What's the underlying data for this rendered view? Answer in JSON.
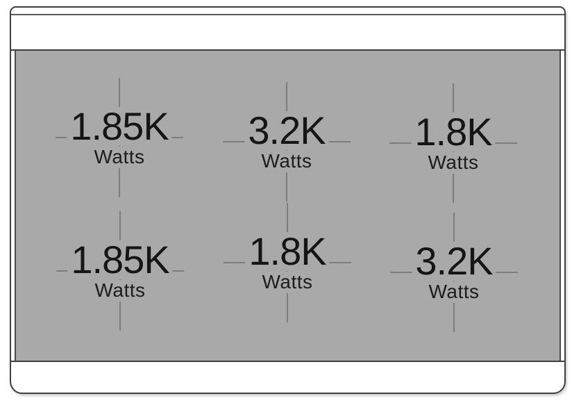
{
  "diagram": {
    "name": "range-cooktop-burner-wattage-diagram",
    "unit_label": "Watts"
  },
  "colors": {
    "surface_gray": "#a9a9a9",
    "crosshair_gray": "#7d7d7d",
    "frame_border": "#3e3e3e",
    "text": "#151515",
    "background": "#ffffff"
  },
  "burners": [
    {
      "position": "top-left",
      "value": "1.85K",
      "unit": "Watts"
    },
    {
      "position": "top-center",
      "value": "3.2K",
      "unit": "Watts"
    },
    {
      "position": "top-right",
      "value": "1.8K",
      "unit": "Watts"
    },
    {
      "position": "bottom-left",
      "value": "1.85K",
      "unit": "Watts"
    },
    {
      "position": "bottom-center",
      "value": "1.8K",
      "unit": "Watts"
    },
    {
      "position": "bottom-right",
      "value": "3.2K",
      "unit": "Watts"
    }
  ]
}
